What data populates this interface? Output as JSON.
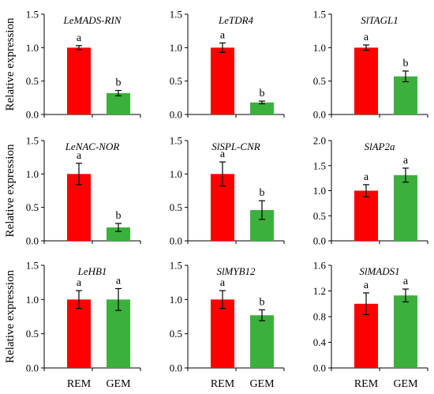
{
  "y_axis_label": "Relative expression",
  "colors": {
    "REM": "#ff0000",
    "GEM": "#3cb03c"
  },
  "chart_data": [
    {
      "type": "bar",
      "title": "LeMADS-RIN",
      "categories": [
        "REM",
        "GEM"
      ],
      "values": [
        1.0,
        0.32
      ],
      "errors": [
        0.03,
        0.04
      ],
      "significance": [
        "a",
        "b"
      ],
      "ylim": [
        0,
        1.5
      ],
      "yticks": [
        "0.0",
        "0.5",
        "1.0",
        "1.5"
      ],
      "show_xlabels": false
    },
    {
      "type": "bar",
      "title": "LeTDR4",
      "categories": [
        "REM",
        "GEM"
      ],
      "values": [
        1.0,
        0.18
      ],
      "errors": [
        0.07,
        0.02
      ],
      "significance": [
        "a",
        "b"
      ],
      "ylim": [
        0,
        1.5
      ],
      "yticks": [
        "0.0",
        "0.5",
        "1.0",
        "1.5"
      ],
      "show_xlabels": false
    },
    {
      "type": "bar",
      "title": "SlTAGL1",
      "categories": [
        "REM",
        "GEM"
      ],
      "values": [
        1.0,
        0.57
      ],
      "errors": [
        0.04,
        0.08
      ],
      "significance": [
        "a",
        "b"
      ],
      "ylim": [
        0,
        1.5
      ],
      "yticks": [
        "0.0",
        "0.5",
        "1.0",
        "1.5"
      ],
      "show_xlabels": false
    },
    {
      "type": "bar",
      "title": "LeNAC-NOR",
      "categories": [
        "REM",
        "GEM"
      ],
      "values": [
        1.0,
        0.2
      ],
      "errors": [
        0.16,
        0.06
      ],
      "significance": [
        "a",
        "b"
      ],
      "ylim": [
        0,
        1.5
      ],
      "yticks": [
        "0.0",
        "0.5",
        "1.0",
        "1.5"
      ],
      "show_xlabels": false
    },
    {
      "type": "bar",
      "title": "SlSPL-CNR",
      "categories": [
        "REM",
        "GEM"
      ],
      "values": [
        1.0,
        0.46
      ],
      "errors": [
        0.18,
        0.14
      ],
      "significance": [
        "a",
        "b"
      ],
      "ylim": [
        0,
        1.5
      ],
      "yticks": [
        "0.0",
        "0.5",
        "1.0",
        "1.5"
      ],
      "show_xlabels": false
    },
    {
      "type": "bar",
      "title": "SlAP2a",
      "categories": [
        "REM",
        "GEM"
      ],
      "values": [
        1.0,
        1.31
      ],
      "errors": [
        0.12,
        0.14
      ],
      "significance": [
        "a",
        "a"
      ],
      "ylim": [
        0,
        2.0
      ],
      "yticks": [
        "0.0",
        "0.5",
        "1.0",
        "1.5",
        "2.0"
      ],
      "show_xlabels": false
    },
    {
      "type": "bar",
      "title": "LeHB1",
      "categories": [
        "REM",
        "GEM"
      ],
      "values": [
        1.0,
        1.0
      ],
      "errors": [
        0.13,
        0.16
      ],
      "significance": [
        "a",
        "a"
      ],
      "ylim": [
        0,
        1.5
      ],
      "yticks": [
        "0.0",
        "0.5",
        "1.0",
        "1.5"
      ],
      "show_xlabels": true
    },
    {
      "type": "bar",
      "title": "SlMYB12",
      "categories": [
        "REM",
        "GEM"
      ],
      "values": [
        1.0,
        0.77
      ],
      "errors": [
        0.13,
        0.08
      ],
      "significance": [
        "a",
        "b"
      ],
      "ylim": [
        0,
        1.5
      ],
      "yticks": [
        "0.0",
        "0.5",
        "1.0",
        "1.5"
      ],
      "show_xlabels": true
    },
    {
      "type": "bar",
      "title": "SlMADS1",
      "categories": [
        "REM",
        "GEM"
      ],
      "values": [
        1.0,
        1.13
      ],
      "errors": [
        0.17,
        0.1
      ],
      "significance": [
        "a",
        "a"
      ],
      "ylim": [
        0,
        1.6
      ],
      "yticks": [
        "0.0",
        "0.4",
        "0.8",
        "1.2",
        "1.6"
      ],
      "show_xlabels": true
    }
  ]
}
